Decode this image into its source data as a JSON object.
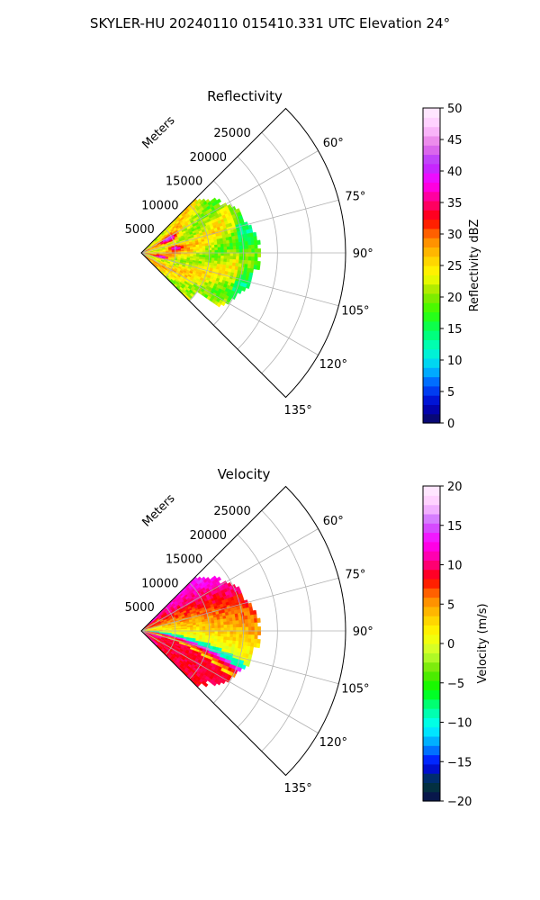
{
  "figure": {
    "suptitle": "SKYLER-HU  20240110  015410.331 UTC Elevation 24°"
  },
  "chart_data": [
    {
      "type": "heatmap",
      "subtype": "polar-sector (PPI)",
      "title": "Reflectivity",
      "range_label": "Meters",
      "range_ticks": [
        "5000",
        "10000",
        "15000",
        "20000",
        "25000"
      ],
      "range_values": [
        5000,
        10000,
        15000,
        20000,
        25000
      ],
      "rmax": 30000,
      "azimuth_ticks": [
        "60°",
        "75°",
        "90°",
        "105°",
        "120°",
        "135°"
      ],
      "azimuth_values": [
        60,
        75,
        90,
        105,
        120,
        135
      ],
      "theta_range": [
        45,
        135
      ],
      "data_extent_m": 18000,
      "colorbar": {
        "label": "Reflectivity dBZ",
        "range": [
          0,
          50
        ],
        "ticks": [
          "0",
          "5",
          "10",
          "15",
          "20",
          "25",
          "30",
          "35",
          "40",
          "45",
          "50"
        ],
        "tick_values": [
          0,
          5,
          10,
          15,
          20,
          25,
          30,
          35,
          40,
          45,
          50
        ],
        "colormap": [
          "#0a0a5a",
          "#0000c8",
          "#0050ff",
          "#00c8ff",
          "#00ffc8",
          "#00ff64",
          "#32ff00",
          "#96e600",
          "#ffff00",
          "#ffc800",
          "#ff8000",
          "#ff0000",
          "#ff0080",
          "#ff00ff",
          "#b432ff",
          "#e678e6",
          "#ffc8ff",
          "#fff0ff"
        ]
      }
    },
    {
      "type": "heatmap",
      "subtype": "polar-sector (PPI)",
      "title": "Velocity",
      "range_label": "Meters",
      "range_ticks": [
        "5000",
        "10000",
        "15000",
        "20000",
        "25000"
      ],
      "range_values": [
        5000,
        10000,
        15000,
        20000,
        25000
      ],
      "rmax": 30000,
      "azimuth_ticks": [
        "60°",
        "75°",
        "90°",
        "105°",
        "120°",
        "135°"
      ],
      "azimuth_values": [
        60,
        75,
        90,
        105,
        120,
        135
      ],
      "theta_range": [
        45,
        135
      ],
      "data_extent_m": 18000,
      "colorbar": {
        "label": "Velocity (m/s)",
        "range": [
          -20,
          20
        ],
        "ticks": [
          "−20",
          "−15",
          "−10",
          "−5",
          "0",
          "5",
          "10",
          "15",
          "20"
        ],
        "tick_values": [
          -20,
          -15,
          -10,
          -5,
          0,
          5,
          10,
          15,
          20
        ],
        "colormap": [
          "#0a0a50",
          "#003c3c",
          "#0000ff",
          "#0096ff",
          "#00ffff",
          "#00ff96",
          "#00ff00",
          "#64e600",
          "#c8ff32",
          "#ffff00",
          "#ffc800",
          "#ff8000",
          "#ff0000",
          "#ff0096",
          "#ff00ff",
          "#c864ff",
          "#ffc8ff",
          "#fff0ff"
        ]
      }
    }
  ]
}
